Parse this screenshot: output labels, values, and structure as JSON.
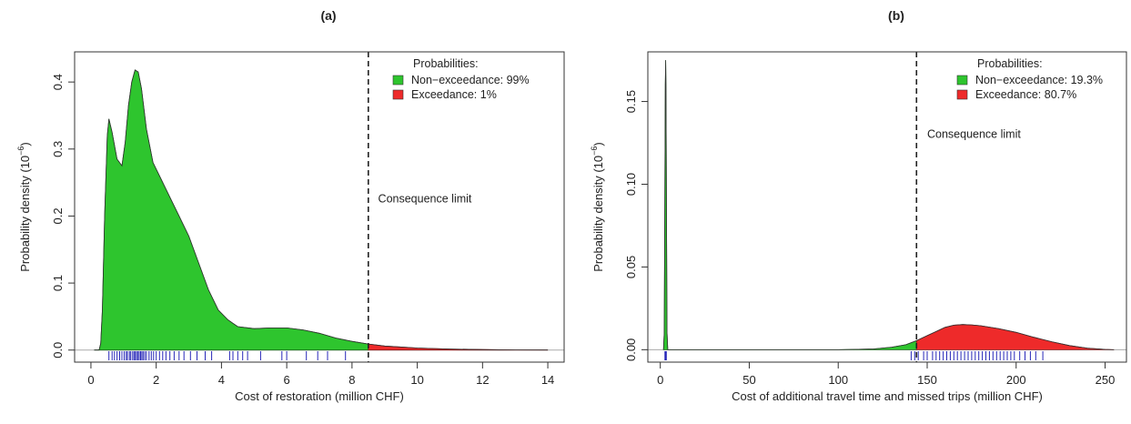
{
  "chart_data": [
    {
      "type": "area",
      "panel_label": "(a)",
      "xlabel": "Cost of restoration (million CHF)",
      "ylabel_main": "Probability density (10",
      "ylabel_exp": "−6",
      "ylabel_close": ")",
      "xlim": [
        -0.5,
        14.5
      ],
      "ylim": [
        -0.018,
        0.445
      ],
      "xticks": [
        0,
        2,
        4,
        6,
        8,
        10,
        12,
        14
      ],
      "xtick_labels": [
        "0",
        "2",
        "4",
        "6",
        "8",
        "10",
        "12",
        "14"
      ],
      "yticks": [
        0.0,
        0.1,
        0.2,
        0.3,
        0.4
      ],
      "ytick_labels": [
        "0.0",
        "0.1",
        "0.2",
        "0.3",
        "0.4"
      ],
      "consequence_limit": 8.5,
      "annotation": "Consequence limit",
      "annotation_pos": [
        8.8,
        0.22
      ],
      "legend_title": "Probabilities:",
      "legend_placement": "top-right",
      "legend": [
        {
          "label": "Non−exceedance: 99%",
          "color": "#2ec52e"
        },
        {
          "label": "Exceedance: 1%",
          "color": "#ee2a2a"
        }
      ],
      "colors": {
        "non_exceedance": "#2ec52e",
        "exceedance": "#ee2a2a",
        "rug": "#2727b8"
      },
      "density": {
        "x": [
          0.1,
          0.25,
          0.3,
          0.35,
          0.42,
          0.5,
          0.55,
          0.65,
          0.8,
          0.95,
          1.05,
          1.15,
          1.25,
          1.35,
          1.45,
          1.55,
          1.7,
          1.9,
          2.1,
          2.4,
          2.7,
          3.0,
          3.3,
          3.6,
          3.9,
          4.2,
          4.5,
          5.0,
          5.5,
          6.0,
          6.5,
          7.0,
          7.5,
          8.0,
          8.5,
          9.0,
          10.0,
          11.0,
          12.0,
          13.0,
          14.0
        ],
        "y": [
          0.0,
          0.0,
          0.01,
          0.06,
          0.2,
          0.32,
          0.345,
          0.325,
          0.285,
          0.275,
          0.31,
          0.365,
          0.4,
          0.418,
          0.415,
          0.39,
          0.33,
          0.28,
          0.26,
          0.23,
          0.2,
          0.17,
          0.13,
          0.09,
          0.06,
          0.045,
          0.035,
          0.032,
          0.033,
          0.033,
          0.03,
          0.025,
          0.018,
          0.013,
          0.009,
          0.006,
          0.003,
          0.0015,
          0.0007,
          0.0002,
          0.0
        ]
      },
      "rug": [
        0.55,
        0.65,
        0.72,
        0.8,
        0.88,
        0.95,
        1.02,
        1.08,
        1.12,
        1.18,
        1.22,
        1.28,
        1.32,
        1.36,
        1.4,
        1.44,
        1.48,
        1.52,
        1.56,
        1.6,
        1.65,
        1.7,
        1.78,
        1.85,
        1.92,
        2.0,
        2.1,
        2.2,
        2.3,
        2.42,
        2.55,
        2.7,
        2.85,
        3.05,
        3.25,
        3.5,
        3.7,
        4.25,
        4.35,
        4.5,
        4.65,
        4.8,
        5.2,
        5.85,
        6.0,
        6.6,
        6.95,
        7.25,
        7.8
      ]
    },
    {
      "type": "area",
      "panel_label": "(b)",
      "xlabel": "Cost of additional travel time and missed trips (million CHF)",
      "ylabel_main": "Probability density (10",
      "ylabel_exp": "−6",
      "ylabel_close": ")",
      "xlim": [
        -7,
        262
      ],
      "ylim": [
        -0.0075,
        0.18
      ],
      "xticks": [
        0,
        50,
        100,
        150,
        200,
        250
      ],
      "xtick_labels": [
        "0",
        "50",
        "100",
        "150",
        "200",
        "250"
      ],
      "yticks": [
        0.0,
        0.05,
        0.1,
        0.15
      ],
      "ytick_labels": [
        "0.00",
        "0.05",
        "0.10",
        "0.15"
      ],
      "consequence_limit": 144,
      "annotation": "Consequence limit",
      "annotation_pos": [
        150,
        0.128
      ],
      "legend_title": "Probabilities:",
      "legend_placement": "top-right",
      "legend": [
        {
          "label": "Non−exceedance: 19.3%",
          "color": "#2ec52e"
        },
        {
          "label": "Exceedance: 80.7%",
          "color": "#ee2a2a"
        }
      ],
      "colors": {
        "non_exceedance": "#2ec52e",
        "exceedance": "#ee2a2a",
        "rug": "#2727b8"
      },
      "density": {
        "x": [
          1.8,
          2.2,
          2.5,
          2.8,
          3.0,
          3.2,
          3.5,
          3.8,
          4.2,
          6,
          50,
          100,
          120,
          130,
          138,
          144,
          150,
          155,
          160,
          165,
          170,
          175,
          180,
          190,
          200,
          210,
          220,
          230,
          240,
          250,
          255
        ],
        "y": [
          0.0,
          0.01,
          0.08,
          0.16,
          0.175,
          0.16,
          0.08,
          0.01,
          0.0,
          0.0,
          0.0,
          0.0,
          0.0005,
          0.0015,
          0.003,
          0.0055,
          0.0085,
          0.011,
          0.0135,
          0.0148,
          0.0152,
          0.015,
          0.0145,
          0.0128,
          0.0105,
          0.0075,
          0.0048,
          0.0025,
          0.0009,
          0.0002,
          0.0
        ]
      },
      "rug": [
        2.6,
        2.8,
        3.0,
        3.2,
        3.4,
        141,
        143,
        145,
        148,
        150,
        153,
        155,
        157,
        159,
        161,
        163,
        165,
        167,
        169,
        171,
        173,
        175,
        177,
        179,
        181,
        183,
        185,
        187,
        189,
        191,
        193,
        195,
        197,
        199,
        202,
        205,
        208,
        211,
        215
      ]
    }
  ]
}
